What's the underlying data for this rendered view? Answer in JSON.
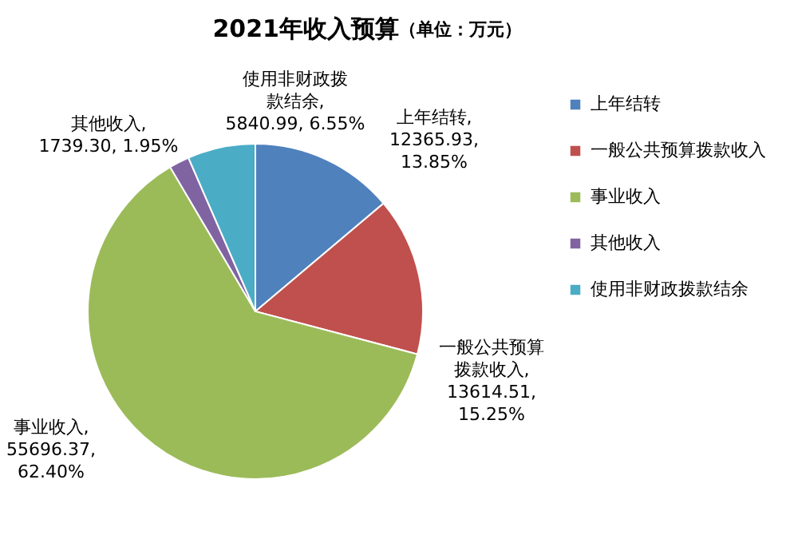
{
  "chart_data": {
    "type": "pie",
    "title": "2021年收入预算",
    "subtitle": "（单位：万元）",
    "categories": [
      "上年结转",
      "一般公共预算拨款收入",
      "事业收入",
      "其他收入",
      "使用非财政拨款结余"
    ],
    "values": [
      12365.93,
      13614.51,
      55696.37,
      1739.3,
      5840.99
    ],
    "colors": [
      "#4f81bd",
      "#c0504d",
      "#9bbb59",
      "#8064a2",
      "#4bacc6"
    ],
    "value_labels": [
      "上年结转, 12365.93, 13.85%",
      "一般公共预算拨款收入, 13614.51, 15.25%",
      "事业收入, 55696.37, 62.40%",
      "其他收入, 1739.30, 1.95%",
      "使用非财政拨款结余, 5840.99, 6.55%"
    ],
    "legend": "right"
  }
}
